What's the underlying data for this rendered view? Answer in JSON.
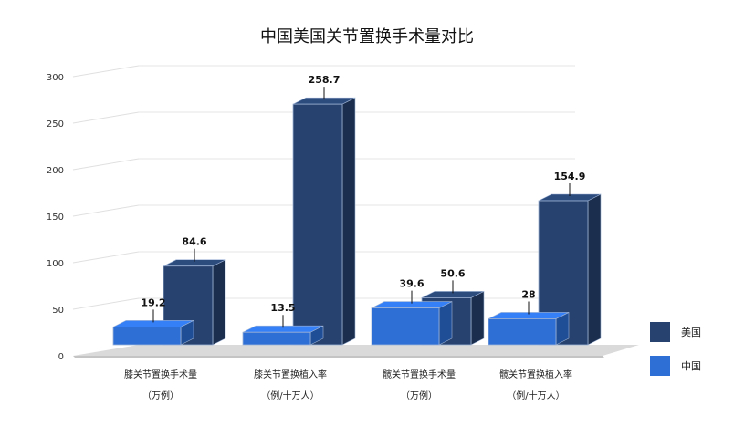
{
  "chart_data": {
    "type": "bar",
    "title": "中国美国关节置换手术量对比",
    "categories": [
      [
        "膝关节置换手术量",
        "（万例）"
      ],
      [
        "膝关节置换植入率",
        "（例/十万人）"
      ],
      [
        "髋关节置换手术量",
        "（万例）"
      ],
      [
        "髋关节置换植入率",
        "（例/十万人）"
      ]
    ],
    "series": [
      {
        "name": "中国",
        "color": "#2e6fd6",
        "values": [
          19.2,
          13.5,
          39.6,
          28
        ]
      },
      {
        "name": "美国",
        "color": "#27426e",
        "values": [
          84.6,
          258.7,
          50.6,
          154.9
        ]
      }
    ],
    "ylim": [
      0,
      300
    ],
    "yticks": [
      0,
      50,
      100,
      150,
      200,
      250,
      300
    ],
    "grid": true,
    "legend_position": "right"
  }
}
